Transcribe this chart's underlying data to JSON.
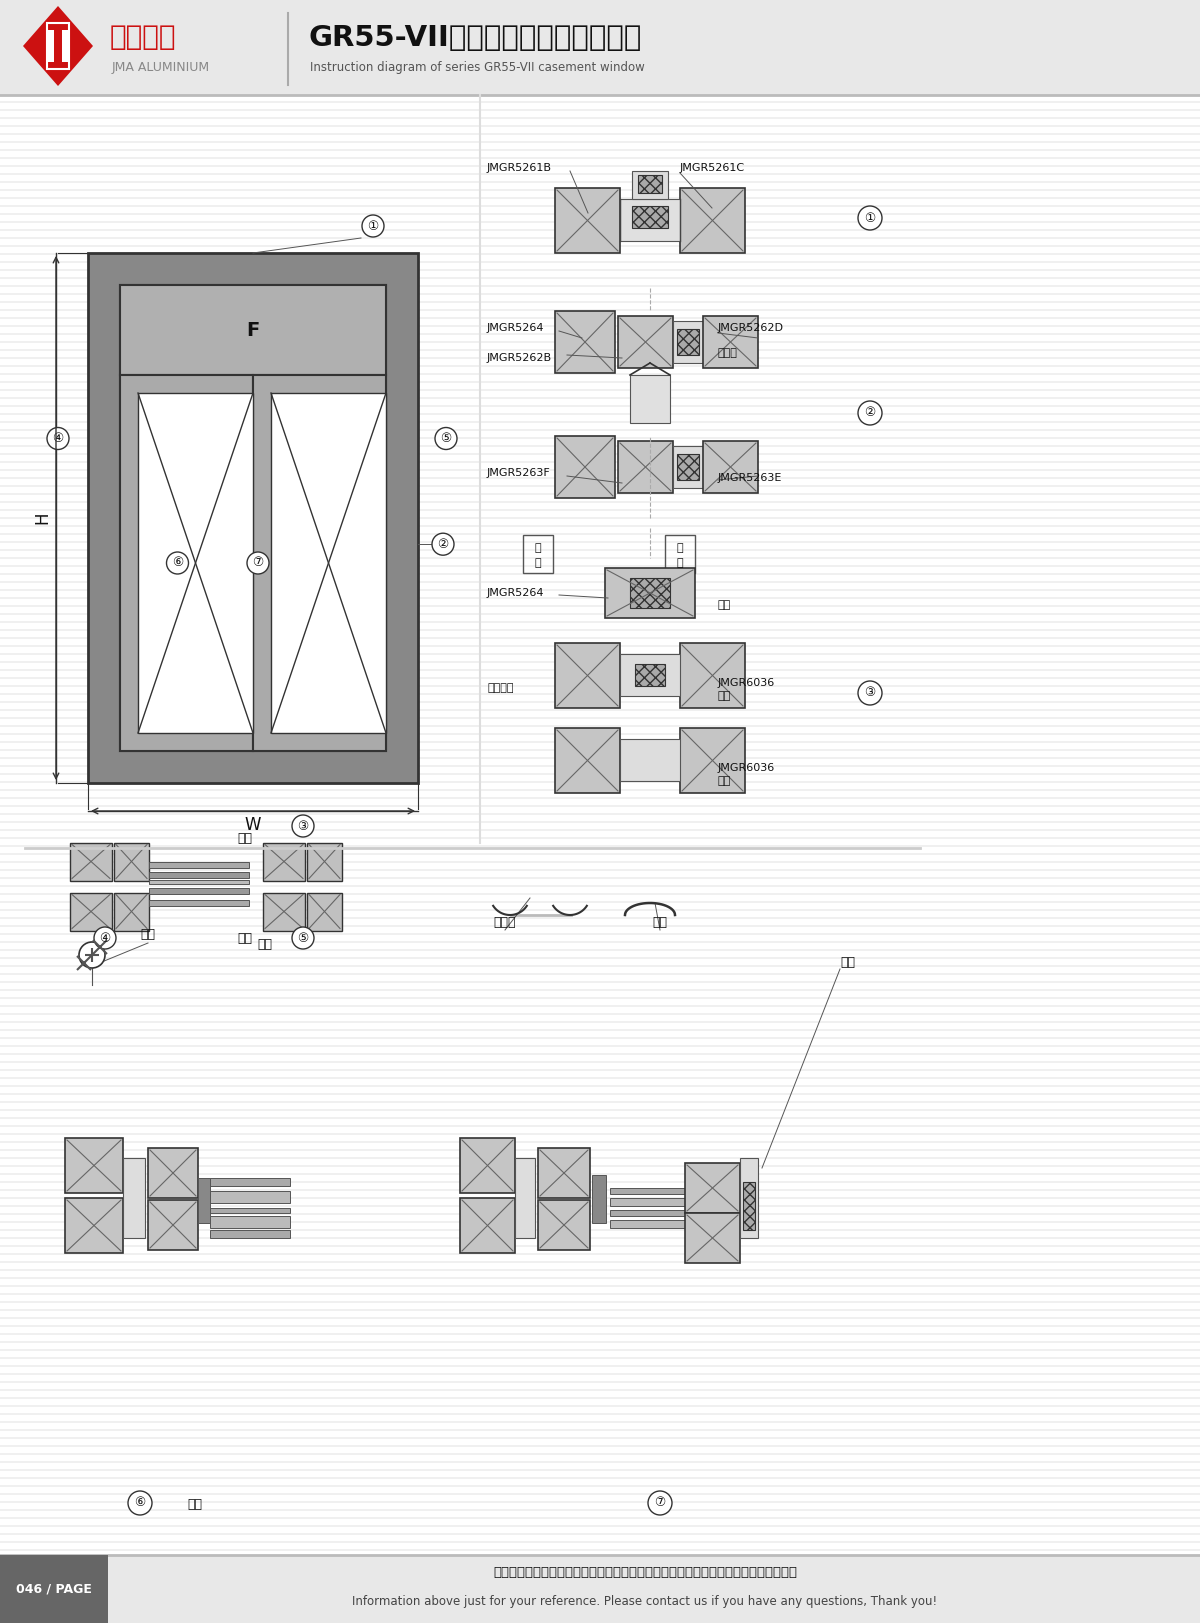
{
  "title_cn": "GR55-VII系列内开内倒窗结构图图",
  "title_en": "Instruction diagram of series GR55-VII casement window",
  "company_cn": "坚美铝业",
  "company_en": "JMA ALUMINIUM",
  "page_label": "046 / PAGE",
  "footer_cn": "图中所示型材截面、装配、编号、尺寸及重量仅供参考。如有疑问，请向本公司查询。",
  "footer_en": "Information above just for your reference. Please contact us if you have any questions, Thank you!",
  "bg_color": "#f5f5f5",
  "white": "#ffffff",
  "red": "#cc1111",
  "dark": "#111111",
  "gray_dark": "#333333",
  "gray_mid": "#888888",
  "gray_light": "#cccccc",
  "profile_fc": "#c8c8c8",
  "header_fc": "#e8e8e8",
  "footer_badge_fc": "#666666",
  "figw": 12.0,
  "figh": 16.23,
  "dpi": 100
}
